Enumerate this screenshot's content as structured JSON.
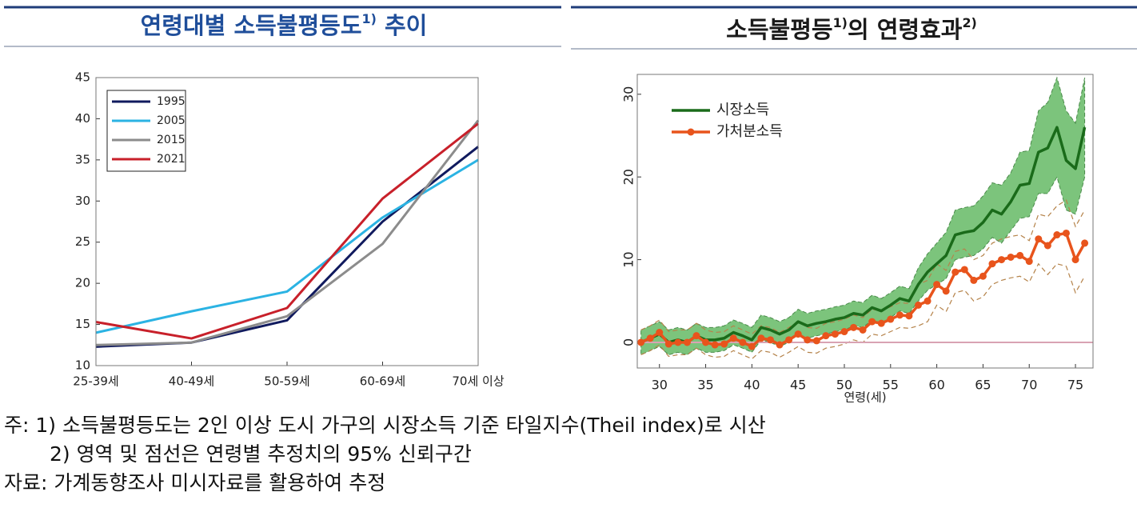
{
  "chart_data": [
    {
      "type": "line",
      "title": [
        "연령대별 소득불평등도",
        "1)",
        " 추이"
      ],
      "categories": [
        "25-39세",
        "40-49세",
        "50-59세",
        "60-69세",
        "70세 이상"
      ],
      "ylim": [
        10,
        45
      ],
      "yticks": [
        10,
        15,
        20,
        25,
        30,
        35,
        40,
        45
      ],
      "legend": "upper-left",
      "series": [
        {
          "name": "1995",
          "color": "#101a5e",
          "values": [
            12.3,
            12.8,
            15.5,
            27.5,
            36.6
          ]
        },
        {
          "name": "2005",
          "color": "#2bb3e3",
          "values": [
            14.0,
            16.6,
            19.0,
            28.0,
            35.0
          ]
        },
        {
          "name": "2015",
          "color": "#8c8c8c",
          "values": [
            12.5,
            12.8,
            16.0,
            24.8,
            39.8
          ]
        },
        {
          "name": "2021",
          "color": "#c8202a",
          "values": [
            15.3,
            13.3,
            17.0,
            30.3,
            39.4
          ]
        }
      ]
    },
    {
      "type": "line",
      "title": [
        "소득불평등",
        "1)",
        "의 연령효과",
        "2)"
      ],
      "x_label": "연령(세)",
      "x": [
        28,
        29,
        30,
        31,
        32,
        33,
        34,
        35,
        36,
        37,
        38,
        39,
        40,
        41,
        42,
        43,
        44,
        45,
        46,
        47,
        48,
        49,
        50,
        51,
        52,
        53,
        54,
        55,
        56,
        57,
        58,
        59,
        60,
        61,
        62,
        63,
        64,
        65,
        66,
        67,
        68,
        69,
        70,
        71,
        72,
        73,
        74,
        75,
        76
      ],
      "xlim": [
        27.6,
        76.9
      ],
      "xticks": [
        30,
        35,
        40,
        45,
        50,
        55,
        60,
        65,
        70,
        75
      ],
      "ylim": [
        -3.1,
        32.4
      ],
      "yticks": [
        0,
        10,
        20,
        30
      ],
      "reference_line": 0,
      "reference_color": "#d9a3b3",
      "legend": "upper-left",
      "series": [
        {
          "name": "시장소득",
          "color": "#1a6b1a",
          "band_color": "#7cc47c",
          "ci_style": "band",
          "markers": false,
          "values": [
            0,
            0.5,
            1.0,
            0,
            0.3,
            0,
            0.8,
            0.3,
            0.3,
            0.5,
            1.2,
            0.8,
            0.3,
            1.8,
            1.5,
            1.0,
            1.5,
            2.5,
            2.0,
            2.3,
            2.5,
            2.8,
            3.0,
            3.5,
            3.3,
            4.2,
            3.8,
            4.5,
            5.3,
            5.0,
            7.0,
            8.5,
            9.5,
            10.5,
            13.0,
            13.3,
            13.5,
            14.5,
            16.0,
            15.5,
            17.0,
            19.0,
            19.2,
            23.0,
            23.5,
            26.0,
            22.0,
            21.0,
            26.0
          ],
          "lower": [
            -1.5,
            -1,
            -0.5,
            -1.5,
            -1.2,
            -1.5,
            -0.7,
            -1.2,
            -1.2,
            -1,
            -0.3,
            -0.7,
            -1.2,
            0.3,
            0,
            -0.5,
            0,
            1,
            0.5,
            0.8,
            1,
            1.3,
            1.5,
            2,
            1.8,
            2.7,
            2.3,
            3,
            3.8,
            3.5,
            5,
            6.3,
            7,
            7.7,
            10,
            10.3,
            10.5,
            11.3,
            12.7,
            12,
            13.5,
            15,
            15.2,
            18,
            18,
            20,
            16,
            15.5,
            20
          ],
          "upper": [
            1.5,
            2,
            2.5,
            1.5,
            1.8,
            1.5,
            2.3,
            1.8,
            1.8,
            2,
            2.7,
            2.3,
            1.8,
            3.3,
            3,
            2.5,
            3,
            4,
            3.5,
            3.8,
            4,
            4.3,
            4.5,
            5,
            4.8,
            5.7,
            5.3,
            6,
            6.8,
            6.5,
            9,
            10.7,
            12,
            13.3,
            16,
            16.3,
            16.5,
            17.7,
            19.3,
            19,
            20.5,
            23,
            23.2,
            28,
            29,
            32,
            28,
            26.5,
            32
          ]
        },
        {
          "name": "가처분소득",
          "color": "#e8541c",
          "band_color": "#b5834a",
          "ci_style": "dashed",
          "markers": true,
          "values": [
            0,
            0.5,
            1.2,
            -0.2,
            0,
            0,
            0.8,
            0,
            -0.3,
            -0.2,
            0.5,
            0,
            -0.5,
            0.5,
            0.3,
            -0.3,
            0.3,
            1.0,
            0.3,
            0.2,
            0.8,
            1.0,
            1.3,
            1.8,
            1.5,
            2.5,
            2.3,
            2.8,
            3.3,
            3.2,
            4.5,
            5.0,
            7.0,
            6.2,
            8.5,
            8.8,
            7.5,
            8.0,
            9.5,
            10.0,
            10.3,
            10.5,
            9.8,
            12.5,
            11.7,
            13.0,
            13.2,
            10.0,
            12.0
          ],
          "lower": [
            -1.5,
            -1,
            -0.3,
            -1.7,
            -1.5,
            -1.5,
            -0.7,
            -1.5,
            -1.8,
            -1.7,
            -1,
            -1.5,
            -2,
            -1,
            -1.2,
            -1.8,
            -1.2,
            -0.5,
            -1.2,
            -1.3,
            -0.7,
            -0.5,
            -0.2,
            0.3,
            0,
            1,
            0.8,
            1.3,
            1.8,
            1.7,
            2,
            2.5,
            4.5,
            3.7,
            6,
            6.3,
            5,
            5.5,
            7,
            7.5,
            7.8,
            8,
            7.3,
            9.5,
            8.2,
            9.5,
            9.2,
            6,
            8
          ],
          "upper": [
            1.5,
            2,
            2.7,
            1.3,
            1.5,
            1.5,
            2.3,
            1.5,
            1.2,
            1.3,
            2,
            1.5,
            1,
            2,
            1.8,
            1.2,
            1.8,
            2.5,
            1.8,
            1.7,
            2.3,
            2.5,
            2.8,
            3.3,
            3,
            4,
            3.8,
            4.3,
            4.8,
            4.7,
            7,
            7.5,
            9.5,
            8.7,
            11,
            11.3,
            10,
            10.5,
            12,
            12.5,
            12.8,
            13,
            12.3,
            15.5,
            15.2,
            16.5,
            17.2,
            14,
            16
          ]
        }
      ]
    }
  ],
  "notes": [
    "주: 1) 소득불평등도는 2인 이상 도시 가구의 시장소득 기준 타일지수(Theil index)로 시산",
    "2) 영역 및 점선은 연령별 추정치의 95% 신뢰구간",
    "자료: 가계동향조사 미시자료를 활용하여 추정"
  ]
}
